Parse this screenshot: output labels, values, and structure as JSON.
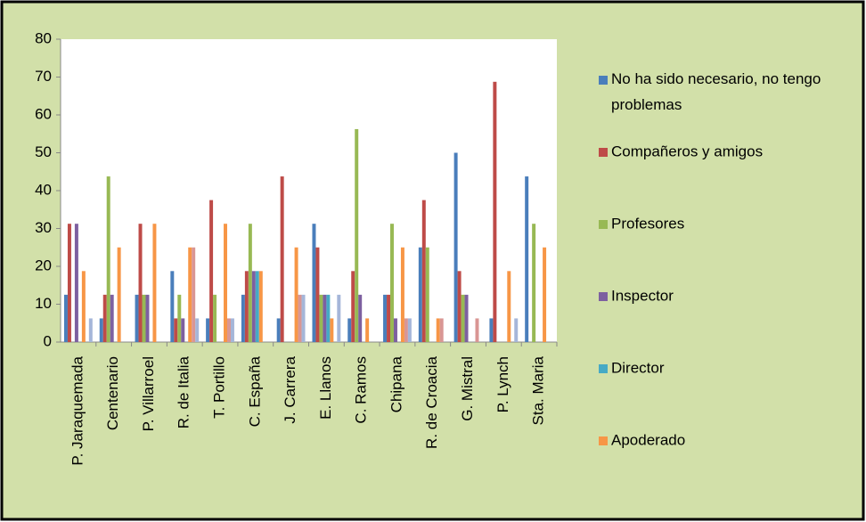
{
  "chart_data": {
    "type": "bar",
    "categories": [
      "P. Jaraquemada",
      "Centenario",
      "P. Villarroel",
      "R. de Italia",
      "T. Portillo",
      "C. España",
      "J. Carrera",
      "E. Llanos",
      "C. Ramos",
      "Chipana",
      "R. de Croacia",
      "G. Mistral",
      "P. Lynch",
      "Sta. Maria"
    ],
    "series": [
      {
        "name": "No ha sido necesario, no tengo problemas",
        "color": "#4a7ebb",
        "values": [
          12.5,
          6.25,
          12.5,
          18.75,
          6.25,
          12.5,
          6.25,
          31.25,
          6.25,
          12.5,
          25,
          50,
          6.25,
          43.75
        ]
      },
      {
        "name": "Compañeros y amigos",
        "color": "#be4b48",
        "values": [
          31.25,
          12.5,
          31.25,
          6.25,
          37.5,
          18.75,
          43.75,
          25,
          18.75,
          12.5,
          37.5,
          18.75,
          68.75,
          0
        ]
      },
      {
        "name": "Profesores",
        "color": "#98b954",
        "values": [
          0,
          43.75,
          12.5,
          12.5,
          12.5,
          31.25,
          0,
          12.5,
          56.25,
          31.25,
          25,
          12.5,
          0,
          31.25
        ]
      },
      {
        "name": "Inspector",
        "color": "#7d60a0",
        "values": [
          31.25,
          12.5,
          12.5,
          6.25,
          0,
          18.75,
          0,
          12.5,
          12.5,
          6.25,
          0,
          12.5,
          0,
          0
        ]
      },
      {
        "name": "Director",
        "color": "#46aac5",
        "values": [
          0,
          0,
          0,
          0,
          0,
          18.75,
          0,
          12.5,
          0,
          0,
          0,
          0,
          0,
          0
        ]
      },
      {
        "name": "Apoderado",
        "color": "#f79646",
        "values": [
          18.75,
          25,
          31.25,
          25,
          31.25,
          18.75,
          25,
          6.25,
          6.25,
          25,
          6.25,
          0,
          18.75,
          25
        ]
      },
      {
        "color": "#d99694",
        "values": [
          0,
          0,
          0,
          25,
          6.25,
          0,
          12.5,
          0,
          0,
          6.25,
          6.25,
          6.25,
          0,
          0
        ]
      },
      {
        "color": "#a5b6d9",
        "values": [
          6.25,
          0,
          0,
          6.25,
          6.25,
          0,
          12.5,
          12.5,
          0,
          6.25,
          0,
          0,
          6.25,
          0
        ]
      }
    ],
    "ylim": [
      0,
      80
    ],
    "yticks": [
      0,
      10,
      20,
      30,
      40,
      50,
      60,
      70,
      80
    ],
    "grid": false,
    "legend": "right"
  }
}
